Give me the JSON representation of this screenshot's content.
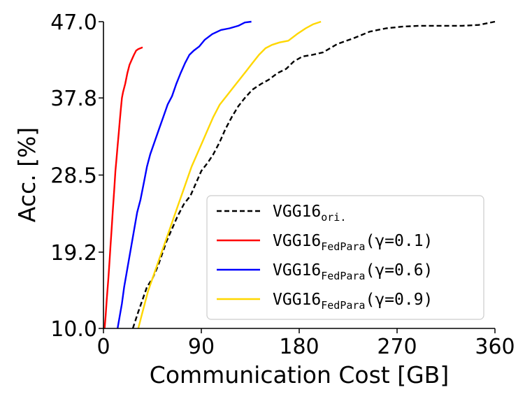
{
  "chart_data": {
    "type": "line",
    "title": "",
    "xlabel": "Communication Cost [GB]",
    "ylabel": "Acc. [%]",
    "xlim": [
      0,
      360
    ],
    "ylim": [
      10.0,
      47.0
    ],
    "xticks": [
      0,
      90,
      180,
      270,
      360
    ],
    "xtick_labels": [
      "0",
      "90",
      "180",
      "270",
      "360"
    ],
    "yticks": [
      10.0,
      19.2,
      28.5,
      37.8,
      47.0
    ],
    "ytick_labels": [
      "10.0",
      "19.2",
      "28.5",
      "37.8",
      "47.0"
    ],
    "grid": false,
    "legend_position": "lower-right",
    "series": [
      {
        "name": "VGG16ori.",
        "label_main": "VGG16",
        "label_sub": "ori.",
        "label_suffix": "",
        "color": "#000000",
        "dash": "dashed",
        "x": [
          27,
          32,
          36,
          40,
          45,
          50,
          54,
          58,
          63,
          68,
          74,
          80,
          85,
          90,
          96,
          101,
          107,
          112,
          118,
          124,
          130,
          137,
          145,
          152,
          160,
          168,
          175,
          183,
          192,
          202,
          215,
          230,
          245,
          260,
          275,
          290,
          310,
          330,
          345,
          360
        ],
        "y": [
          10.0,
          12.0,
          13.5,
          15.0,
          16.0,
          17.5,
          19.0,
          20.5,
          22.0,
          23.5,
          25.0,
          26.0,
          27.5,
          29.0,
          30.0,
          31.0,
          32.5,
          34.0,
          35.5,
          36.8,
          37.8,
          38.8,
          39.5,
          40.0,
          40.8,
          41.3,
          42.2,
          42.8,
          43.0,
          43.3,
          44.3,
          45.0,
          45.8,
          46.2,
          46.4,
          46.5,
          46.5,
          46.5,
          46.6,
          47.0
        ]
      },
      {
        "name": "VGG16FedPara(γ=0.1)",
        "label_main": "VGG16",
        "label_sub": "FedPara",
        "label_suffix": "(γ=0.1)",
        "color": "#ff0000",
        "dash": "solid",
        "x": [
          1,
          2,
          3,
          4.5,
          5.5,
          6.5,
          7.5,
          8.5,
          10,
          11,
          12,
          13,
          14,
          15,
          16,
          17,
          18,
          20,
          22,
          24,
          26,
          28,
          30,
          32,
          34,
          36
        ],
        "y": [
          10.0,
          11.5,
          13.5,
          16.0,
          18.0,
          20.0,
          22.0,
          24.0,
          27.0,
          29.0,
          30.5,
          32.0,
          33.5,
          35.0,
          36.5,
          37.8,
          38.5,
          39.5,
          40.8,
          41.8,
          42.4,
          43.0,
          43.5,
          43.7,
          43.8,
          43.9
        ]
      },
      {
        "name": "VGG16FedPara(γ=0.6)",
        "label_main": "VGG16",
        "label_sub": "FedPara",
        "label_suffix": "(γ=0.6)",
        "color": "#0000ff",
        "dash": "solid",
        "x": [
          13,
          15,
          17,
          19,
          21,
          23,
          25,
          27,
          29,
          31,
          34,
          37,
          40,
          43,
          47,
          51,
          55,
          59,
          63,
          67,
          71,
          75,
          79,
          83,
          88,
          93,
          100,
          108,
          116,
          124,
          130,
          136
        ],
        "y": [
          10.0,
          11.5,
          13.0,
          15.0,
          16.5,
          18.0,
          19.5,
          21.0,
          22.5,
          24.0,
          25.5,
          27.5,
          29.5,
          31.0,
          32.5,
          34.0,
          35.5,
          37.0,
          38.0,
          39.5,
          40.8,
          42.0,
          43.0,
          43.5,
          44.0,
          44.8,
          45.5,
          46.0,
          46.2,
          46.5,
          46.9,
          47.0
        ]
      },
      {
        "name": "VGG16FedPara(γ=0.9)",
        "label_main": "VGG16",
        "label_sub": "FedPara",
        "label_suffix": "(γ=0.9)",
        "color": "#ffd700",
        "dash": "solid",
        "x": [
          32,
          35,
          38,
          41,
          45,
          49,
          53,
          57,
          61,
          65,
          69,
          73,
          77,
          81,
          86,
          91,
          96,
          101,
          107,
          113,
          119,
          125,
          131,
          137,
          143,
          149,
          155,
          162,
          170,
          178,
          186,
          193,
          200
        ],
        "y": [
          10.0,
          11.5,
          13.0,
          14.5,
          16.0,
          17.5,
          19.0,
          20.5,
          22.0,
          23.5,
          25.0,
          26.5,
          28.0,
          29.5,
          31.0,
          32.5,
          34.0,
          35.5,
          37.0,
          38.0,
          39.0,
          40.0,
          41.0,
          42.0,
          43.0,
          43.8,
          44.2,
          44.5,
          44.7,
          45.5,
          46.2,
          46.7,
          47.0
        ]
      }
    ]
  }
}
